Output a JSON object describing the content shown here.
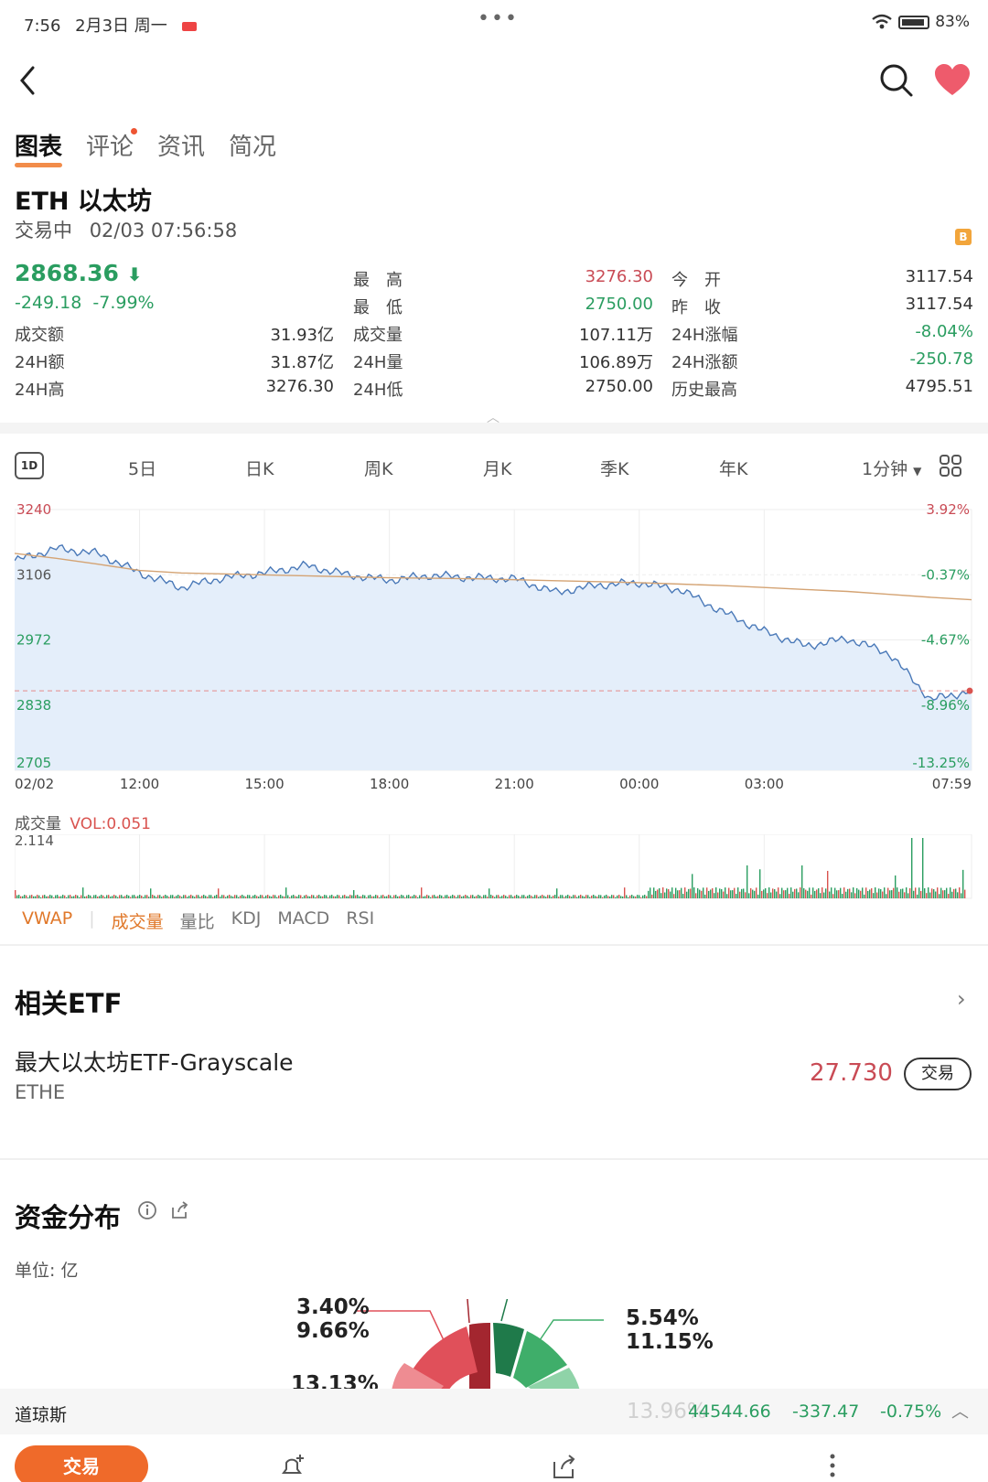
{
  "status": {
    "time": "7:56",
    "date": "2月3日 周一",
    "battery": "83%"
  },
  "tabs": [
    {
      "label": "图表"
    },
    {
      "label": "评论"
    },
    {
      "label": "资讯"
    },
    {
      "label": "简况"
    }
  ],
  "asset": {
    "title": "ETH 以太坊",
    "status": "交易中",
    "timestamp": "02/03 07:56:58",
    "price": "2868.36",
    "change": "-249.18",
    "change_pct": "-7.99%",
    "coin_badge": "B"
  },
  "stats": {
    "col1": [
      {
        "label": "成交额",
        "value": "31.93亿"
      },
      {
        "label": "24H额",
        "value": "31.87亿"
      },
      {
        "label": "24H高",
        "value": "3276.30"
      }
    ],
    "col2": [
      {
        "label": "最　高",
        "value": "3276.30",
        "color": "#c94b55"
      },
      {
        "label": "最　低",
        "value": "2750.00",
        "color": "#2a9d60"
      },
      {
        "label": "成交量",
        "value": "107.11万",
        "color": "#333333"
      },
      {
        "label": "24H量",
        "value": "106.89万",
        "color": "#333333"
      },
      {
        "label": "24H低",
        "value": "2750.00",
        "color": "#333333"
      }
    ],
    "col3": [
      {
        "label": "今　开",
        "value": "3117.54",
        "color": "#333333"
      },
      {
        "label": "昨　收",
        "value": "3117.54",
        "color": "#333333"
      },
      {
        "label": "24H涨幅",
        "value": "-8.04%",
        "color": "#2a9d60"
      },
      {
        "label": "24H涨额",
        "value": "-250.78",
        "color": "#2a9d60"
      },
      {
        "label": "历史最高",
        "value": "4795.51",
        "color": "#333333"
      }
    ]
  },
  "periods": [
    "1D",
    "5日",
    "日K",
    "周K",
    "月K",
    "季K",
    "年K",
    "1分钟"
  ],
  "chart_data": {
    "type": "line",
    "title": "",
    "y_left_ticks": [
      "3240",
      "3106",
      "2972",
      "2838",
      "2705"
    ],
    "y_right_ticks": [
      "3.92%",
      "-0.37%",
      "-4.67%",
      "-8.96%",
      "-13.25%"
    ],
    "x_ticks": [
      "02/02",
      "12:00",
      "15:00",
      "18:00",
      "21:00",
      "00:00",
      "03:00",
      "07:59"
    ],
    "ylim": [
      2705,
      3240
    ],
    "reference_close": 3117.54,
    "x_hours_from_0900": [
      0,
      1,
      2,
      3,
      4,
      5,
      6,
      7,
      8,
      9,
      10,
      11,
      12,
      13,
      14,
      15,
      16,
      17,
      18,
      19,
      20,
      21,
      22,
      22.98
    ],
    "series": [
      {
        "values": [
          3135,
          3160,
          3150,
          3110,
          3080,
          3100,
          3110,
          3125,
          3106,
          3095,
          3105,
          3100,
          3098,
          3070,
          3085,
          3090,
          3075,
          3030,
          2990,
          2960,
          2975,
          2945,
          2850,
          2868
        ]
      },
      {
        "values": [
          3150,
          3140,
          3128,
          3115,
          3110,
          3108,
          3106,
          3104,
          3102,
          3100,
          3099,
          3098,
          3096,
          3094,
          3092,
          3090,
          3087,
          3084,
          3080,
          3076,
          3072,
          3066,
          3060,
          3055
        ]
      }
    ],
    "grid": true
  },
  "volume": {
    "label": "成交量",
    "vol_label": "VOL:0.051",
    "max_tick": "2.114"
  },
  "indicators": [
    "VWAP",
    "成交量",
    "量比",
    "KDJ",
    "MACD",
    "RSI"
  ],
  "etf": {
    "section_title": "相关ETF",
    "name": "最大以太坊ETF-Grayscale",
    "code": "ETHE",
    "price": "27.730",
    "trade_label": "交易"
  },
  "funds": {
    "section_title": "资金分布",
    "unit": "单位: 亿",
    "labels_left": [
      "3.40%",
      "9.66%",
      "13.13%"
    ],
    "labels_right": [
      "5.54%",
      "11.15%",
      "13.96%"
    ],
    "colors": {
      "red_dark": "#a3262f",
      "red": "#e0505a",
      "red_light": "#ee8c92",
      "green_dark": "#1f7a4a",
      "green": "#3fae6a",
      "green_light": "#8fd3a8"
    }
  },
  "ticker": {
    "name": "道琼斯",
    "value": "44544.66",
    "change": "-337.47",
    "pct": "-0.75%"
  },
  "bottom": {
    "trade_label": "交易"
  }
}
